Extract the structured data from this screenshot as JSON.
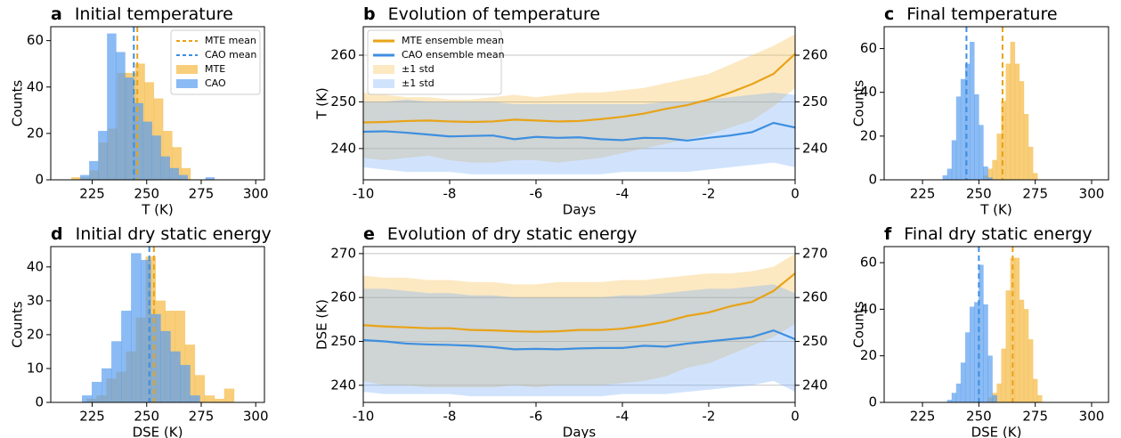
{
  "chart_data": [
    {
      "type": "histogram",
      "label": "a",
      "title": "Initial temperature",
      "xlabel": "T (K)",
      "ylabel": "Counts",
      "xlim": [
        206,
        304
      ],
      "xticks": [
        225,
        250,
        275,
        300
      ],
      "ylim": [
        0,
        66
      ],
      "yticks": [
        0,
        20,
        40,
        60
      ],
      "legend": "upper right",
      "mean_lines": [
        {
          "name": "MTE mean",
          "color": "#e8a317",
          "value": 245.7
        },
        {
          "name": "CAO mean",
          "color": "#3d8fe0",
          "value": 244.1
        }
      ],
      "series": [
        {
          "name": "MTE",
          "color": "#f5b942",
          "bins": [
            215.5,
            219.7,
            223.9,
            228.1,
            232.3,
            236.5,
            240.7,
            244.9,
            249.1,
            253.3,
            257.5,
            261.7,
            265.9,
            270.1
          ],
          "values": [
            1,
            1,
            4,
            16,
            22,
            46,
            46,
            50,
            42,
            35,
            21,
            14,
            5
          ]
        },
        {
          "name": "CAO",
          "color": "#5a9ef0",
          "bins": [
            219.6,
            223.7,
            227.8,
            231.9,
            236.0,
            240.1,
            244.2,
            248.3,
            252.4,
            256.5,
            260.6,
            264.7,
            268.8,
            272.9,
            277.0,
            281.1
          ],
          "values": [
            2,
            8,
            21,
            63,
            55,
            44,
            33,
            25,
            19,
            10,
            5,
            2,
            0,
            0,
            1
          ]
        }
      ]
    },
    {
      "type": "line",
      "label": "b",
      "title": "Evolution of temperature",
      "xlabel": "Days",
      "ylabel": "T (K)",
      "xlim": [
        -10,
        0
      ],
      "xticks": [
        -10,
        -8,
        -6,
        -4,
        -2,
        0
      ],
      "ylim": [
        233.3,
        266.1
      ],
      "yticks": [
        240,
        250,
        260
      ],
      "grid": true,
      "right_ticks": true,
      "legend": "upper left",
      "x": [
        -10,
        -9.5,
        -9,
        -8.5,
        -8,
        -7.5,
        -7,
        -6.5,
        -6,
        -5.5,
        -5,
        -4.5,
        -4,
        -3.5,
        -3,
        -2.5,
        -2,
        -1.5,
        -1,
        -0.5,
        0
      ],
      "series": [
        {
          "name": "MTE ensemble mean",
          "band_name": "±1 std",
          "color": "#e8a317",
          "values": [
            245.6,
            245.7,
            245.9,
            246.0,
            245.8,
            245.7,
            245.8,
            246.2,
            246.0,
            245.8,
            245.9,
            246.3,
            246.8,
            247.5,
            248.5,
            249.3,
            250.5,
            252.0,
            253.8,
            256.0,
            260.3
          ],
          "upper": [
            252,
            251.5,
            251,
            251,
            250.5,
            250.5,
            251,
            251.5,
            251,
            251.5,
            252,
            252,
            252.5,
            253,
            254,
            255,
            256,
            258,
            260,
            262,
            264.5
          ],
          "lower": [
            238,
            237.5,
            238,
            238.5,
            237.5,
            237,
            237,
            237.5,
            237.5,
            237,
            237.5,
            238,
            239,
            240,
            241,
            242,
            243,
            244.5,
            246,
            249,
            253
          ]
        },
        {
          "name": "CAO ensemble mean",
          "band_name": "±1 std",
          "color": "#3d8fe0",
          "values": [
            243.6,
            243.7,
            243.4,
            243.0,
            242.6,
            242.7,
            242.8,
            242.0,
            242.5,
            242.3,
            242.4,
            242.0,
            241.8,
            242.3,
            242.2,
            241.7,
            242.3,
            242.8,
            243.5,
            245.5,
            244.5
          ],
          "upper": [
            250,
            250,
            250.5,
            250,
            250,
            250,
            250,
            249.5,
            249.5,
            249.5,
            249.5,
            249.5,
            249.5,
            249.5,
            250,
            250,
            250.5,
            251,
            251.5,
            252,
            251.5
          ],
          "lower": [
            236,
            235.5,
            235,
            235,
            235,
            234.5,
            234.5,
            234.5,
            234.5,
            234.5,
            234.5,
            234.5,
            235,
            235,
            235,
            235,
            235.5,
            236,
            236.5,
            237,
            236
          ]
        }
      ]
    },
    {
      "type": "histogram",
      "label": "c",
      "title": "Final temperature",
      "xlabel": "T (K)",
      "ylabel": "Counts",
      "xlim": [
        208,
        307.5
      ],
      "xticks": [
        225,
        250,
        275,
        300
      ],
      "ylim": [
        0,
        70
      ],
      "yticks": [
        0,
        20,
        40,
        60
      ],
      "mean_lines": [
        {
          "color": "#e8a317",
          "value": 260.5
        },
        {
          "color": "#3d8fe0",
          "value": 244.5
        }
      ],
      "series": [
        {
          "color": "#f5b942",
          "bins": [
            252,
            254,
            256,
            258,
            260,
            262,
            264,
            266,
            268,
            270,
            272,
            274,
            276
          ],
          "values": [
            2,
            5,
            9,
            21,
            36,
            53,
            63,
            53,
            45,
            30,
            15,
            3
          ]
        },
        {
          "color": "#5a9ef0",
          "bins": [
            234,
            236,
            238,
            240,
            242,
            244,
            246,
            248,
            250,
            252,
            254,
            256
          ],
          "values": [
            2,
            5,
            18,
            38,
            46,
            53,
            63,
            39,
            25,
            6,
            1
          ]
        }
      ]
    },
    {
      "type": "histogram",
      "label": "d",
      "title": "Initial dry static energy",
      "xlabel": "DSE (K)",
      "ylabel": "Counts",
      "xlim": [
        206,
        304
      ],
      "xticks": [
        225,
        250,
        275,
        300
      ],
      "ylim": [
        0,
        46
      ],
      "yticks": [
        0,
        10,
        20,
        30,
        40
      ],
      "mean_lines": [
        {
          "color": "#e8a317",
          "value": 253.3
        },
        {
          "color": "#3d8fe0",
          "value": 251.2
        }
      ],
      "series": [
        {
          "color": "#f5b942",
          "bins": [
            222.6,
            227.1,
            231.6,
            236.1,
            240.6,
            245.1,
            249.6,
            254.1,
            258.6,
            263.1,
            267.6,
            272.1,
            276.6,
            281.1,
            285.6,
            290.1
          ],
          "values": [
            1,
            2,
            7,
            9,
            15,
            25,
            43,
            30,
            27,
            27,
            17,
            8,
            2,
            1,
            4
          ]
        },
        {
          "color": "#5a9ef0",
          "bins": [
            220.4,
            224.9,
            229.4,
            233.9,
            238.4,
            242.9,
            247.4,
            251.9,
            256.4,
            260.9,
            265.4,
            269.9,
            274.4
          ],
          "values": [
            2,
            6,
            10,
            18,
            27,
            44,
            42,
            26,
            21,
            15,
            11,
            2
          ]
        }
      ]
    },
    {
      "type": "line",
      "label": "e",
      "title": "Evolution of dry static energy",
      "xlabel": "Days",
      "ylabel": "DSE (K)",
      "xlim": [
        -10,
        0
      ],
      "xticks": [
        -10,
        -8,
        -6,
        -4,
        -2,
        0
      ],
      "ylim": [
        236.1,
        271.6
      ],
      "yticks": [
        240,
        250,
        260,
        270
      ],
      "grid": true,
      "right_ticks": true,
      "x": [
        -10,
        -9.5,
        -9,
        -8.5,
        -8,
        -7.5,
        -7,
        -6.5,
        -6,
        -5.5,
        -5,
        -4.5,
        -4,
        -3.5,
        -3,
        -2.5,
        -2,
        -1.5,
        -1,
        -0.5,
        0
      ],
      "series": [
        {
          "color": "#e8a317",
          "values": [
            253.7,
            253.4,
            253.2,
            253.0,
            253.0,
            252.6,
            252.5,
            252.3,
            252.2,
            252.3,
            252.6,
            252.6,
            252.9,
            253.6,
            254.5,
            255.8,
            256.6,
            258,
            259,
            261.5,
            265.5
          ],
          "upper": [
            265,
            264.5,
            264.5,
            264,
            264,
            263.5,
            263.5,
            263,
            263,
            263.5,
            263.5,
            263.5,
            264,
            264,
            264.5,
            265,
            265.5,
            265.5,
            266,
            267,
            270
          ],
          "lower": [
            241,
            240,
            240,
            239.5,
            239.5,
            239.5,
            239.5,
            240,
            239.5,
            240,
            240,
            240,
            240.5,
            241,
            242,
            244,
            245,
            247,
            249,
            251,
            254
          ]
        },
        {
          "color": "#3d8fe0",
          "values": [
            250.3,
            250,
            249.5,
            249.3,
            249.2,
            249,
            248.7,
            248.2,
            248.3,
            248.2,
            248.4,
            248.5,
            248.5,
            249,
            248.8,
            249.5,
            250,
            250.5,
            251,
            252.5,
            250.5
          ],
          "upper": [
            262,
            262,
            261.5,
            261,
            261,
            260.5,
            260.5,
            260,
            260,
            260,
            260,
            260,
            260.5,
            260.5,
            261,
            261.5,
            262,
            262,
            262.5,
            263,
            261
          ],
          "lower": [
            238.5,
            238,
            238,
            238,
            238,
            237.5,
            237.5,
            237.5,
            237.5,
            237.5,
            237.5,
            237.5,
            238,
            238,
            238,
            238.5,
            239,
            239.5,
            240,
            241,
            238.5
          ]
        }
      ]
    },
    {
      "type": "histogram",
      "label": "f",
      "title": "Final dry static energy",
      "xlabel": "DSE (K)",
      "ylabel": "Counts",
      "xlim": [
        208,
        307.5
      ],
      "xticks": [
        225,
        250,
        275,
        300
      ],
      "ylim": [
        0,
        66.9
      ],
      "yticks": [
        0,
        20,
        40,
        60
      ],
      "mean_lines": [
        {
          "color": "#e8a317",
          "value": 265
        },
        {
          "color": "#3d8fe0",
          "value": 250
        }
      ],
      "series": [
        {
          "color": "#f5b942",
          "bins": [
            254,
            256,
            258,
            260,
            262,
            264,
            266,
            268,
            270,
            272,
            274,
            276,
            278
          ],
          "values": [
            2,
            4,
            8,
            23,
            48,
            62,
            62,
            44,
            40,
            27,
            10,
            3
          ]
        },
        {
          "color": "#5a9ef0",
          "bins": [
            236,
            238,
            240,
            242,
            244,
            246,
            248,
            250,
            252,
            254,
            256,
            258
          ],
          "values": [
            1,
            4,
            8,
            17,
            30,
            41,
            43,
            59,
            42,
            20,
            3
          ]
        }
      ]
    }
  ]
}
